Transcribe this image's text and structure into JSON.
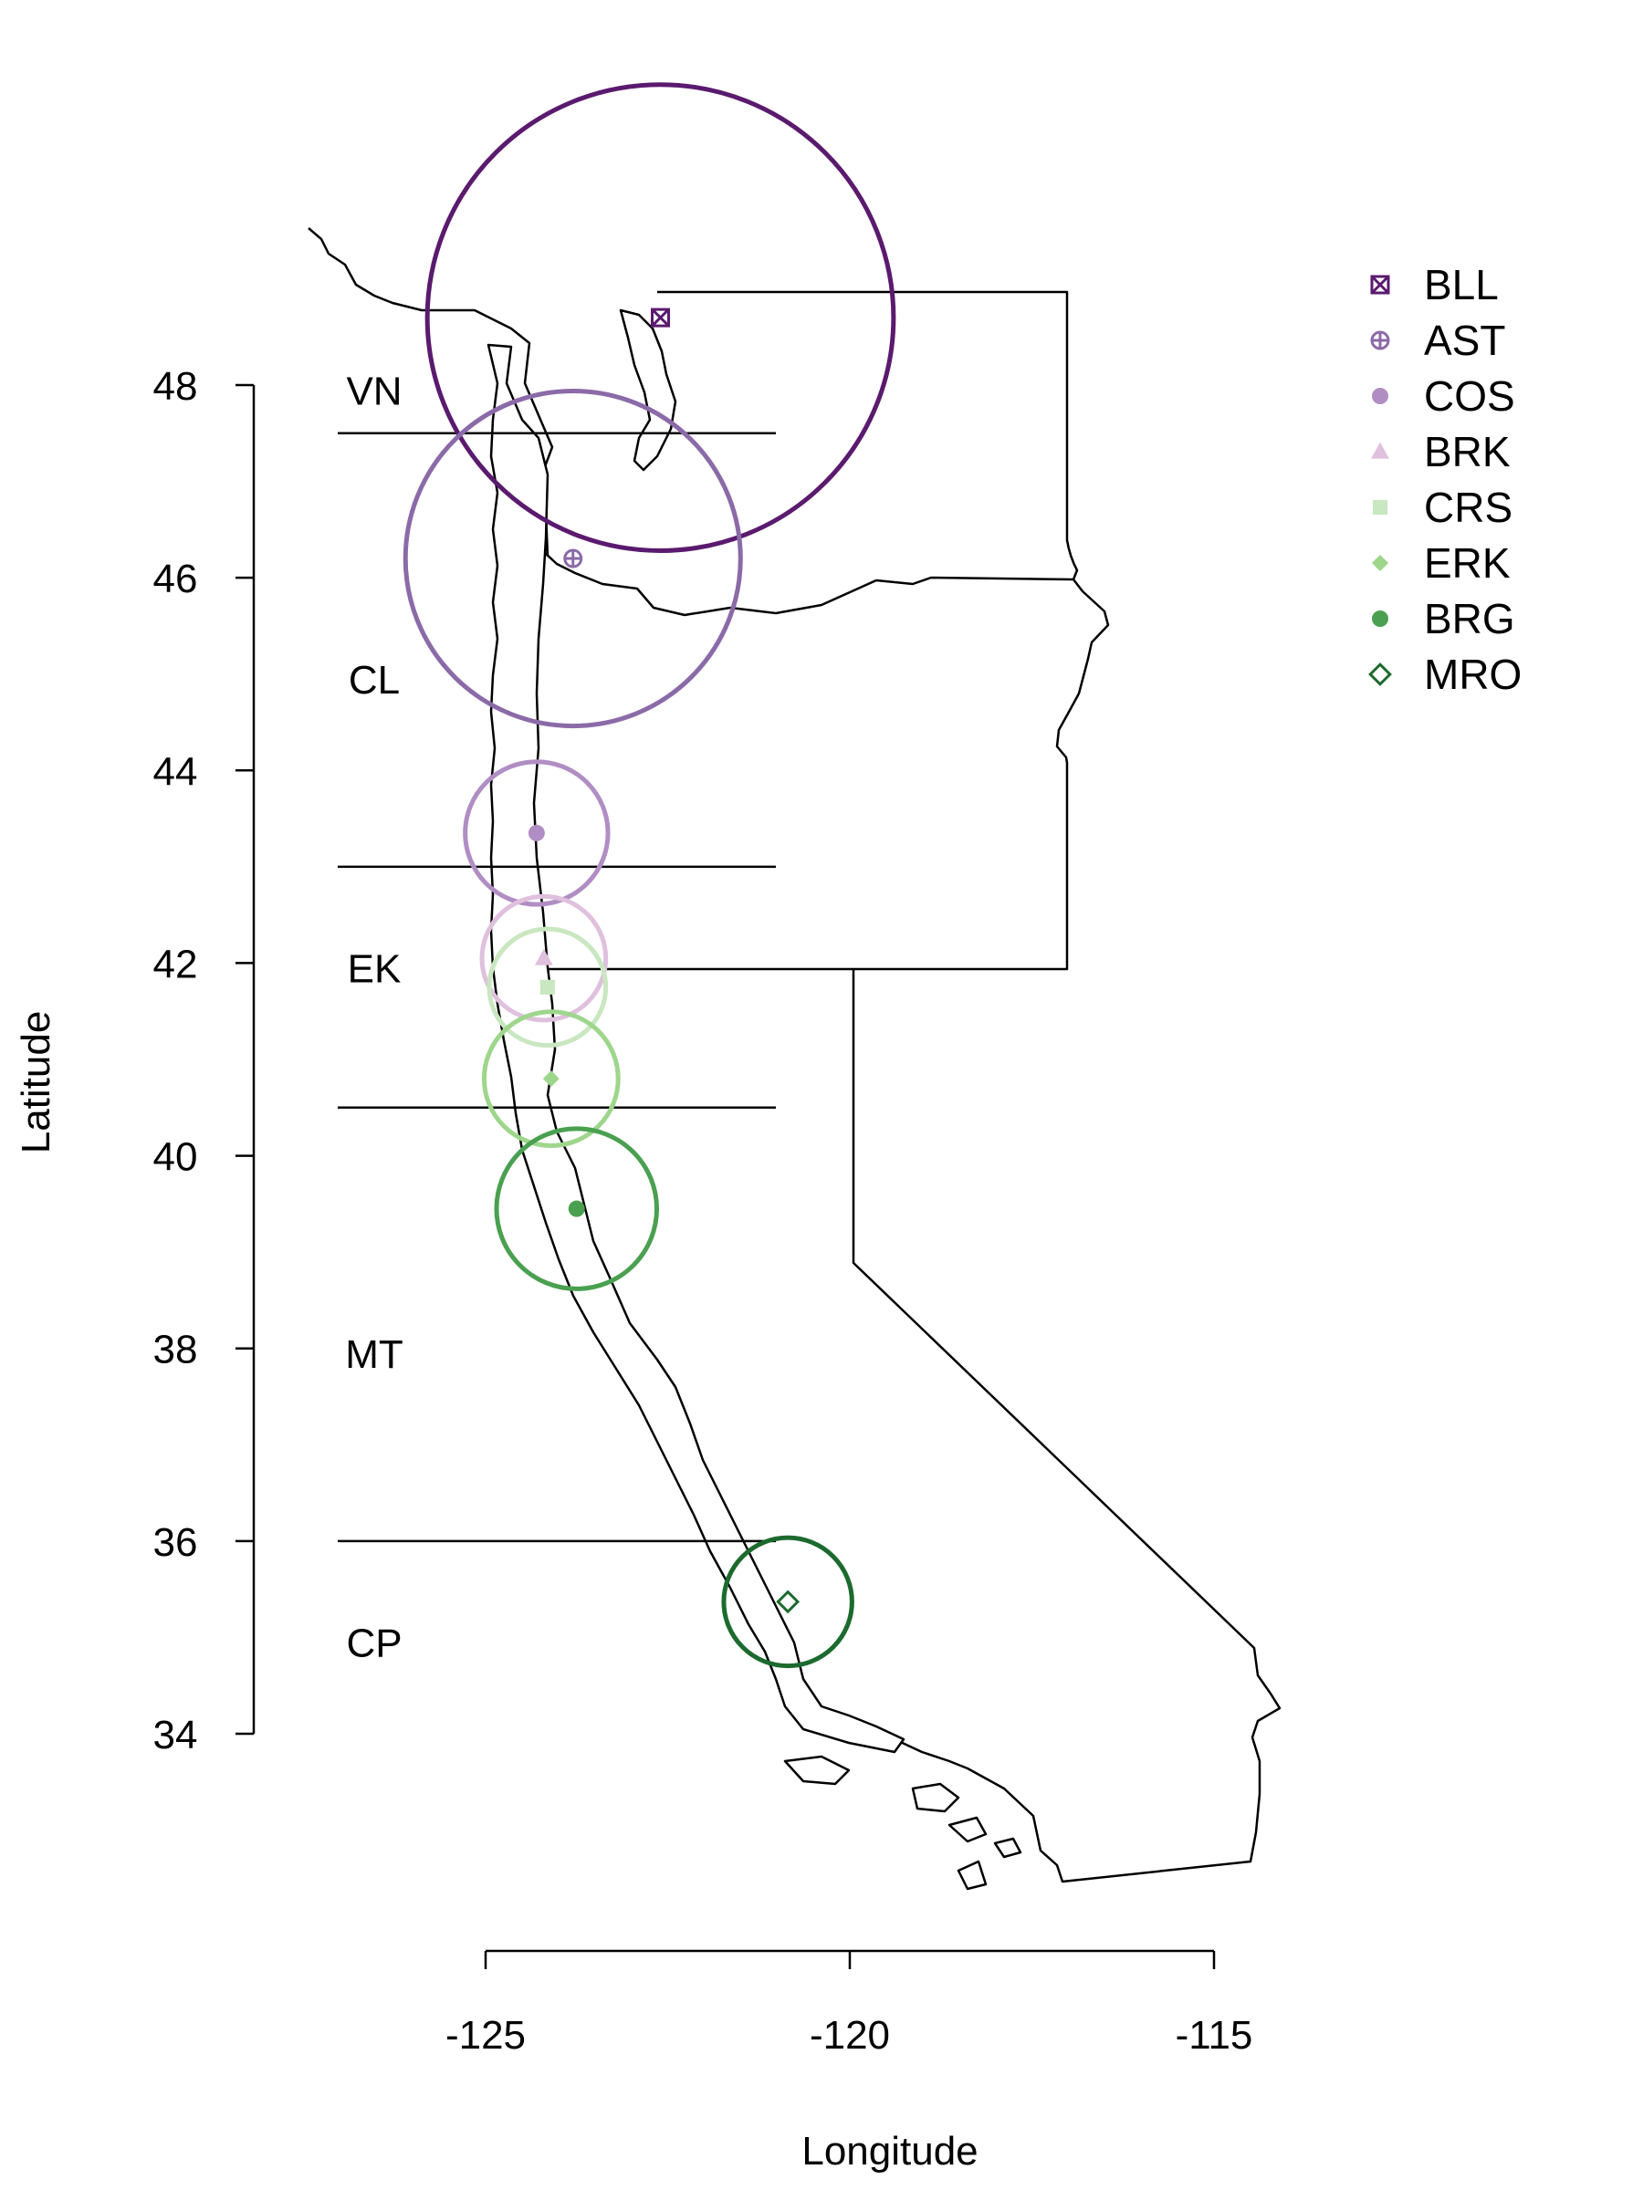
{
  "chart_data": {
    "type": "map",
    "xlabel": "Longitude",
    "ylabel": "Latitude",
    "xlim": [
      -127.5,
      -114
    ],
    "ylim": [
      32,
      49.6
    ],
    "x_ticks": [
      -125,
      -120,
      -115
    ],
    "x_tick_labels": [
      "-125",
      "-120",
      "-115"
    ],
    "y_ticks": [
      34,
      36,
      38,
      40,
      42,
      44,
      46,
      48
    ],
    "y_tick_labels": [
      "34",
      "36",
      "38",
      "40",
      "42",
      "44",
      "46",
      "48"
    ],
    "regions": [
      {
        "label": "VN",
        "lat": 47.95
      },
      {
        "label": "CL",
        "lat": 44.95
      },
      {
        "label": "EK",
        "lat": 41.95
      },
      {
        "label": "MT",
        "lat": 37.95
      },
      {
        "label": "CP",
        "lat": 34.95
      }
    ],
    "region_boundaries_lat": [
      47.5,
      43.0,
      40.5,
      36.0
    ],
    "sites": [
      {
        "code": "BLL",
        "lon": -122.6,
        "lat": 48.7,
        "radius_deg": 3.2,
        "color": "#5a1a6e",
        "symbol": "square-x"
      },
      {
        "code": "AST",
        "lon": -123.8,
        "lat": 46.2,
        "radius_deg": 2.3,
        "color": "#8b6aa8",
        "symbol": "circle-plus"
      },
      {
        "code": "COS",
        "lon": -124.3,
        "lat": 43.35,
        "radius_deg": 0.98,
        "color": "#b08ec4",
        "symbol": "circle-filled"
      },
      {
        "code": "BRK",
        "lon": -124.2,
        "lat": 42.05,
        "radius_deg": 0.85,
        "color": "#dfc0dd",
        "symbol": "triangle"
      },
      {
        "code": "CRS",
        "lon": -124.15,
        "lat": 41.75,
        "radius_deg": 0.8,
        "color": "#c9e7c0",
        "symbol": "square-filled"
      },
      {
        "code": "ERK",
        "lon": -124.1,
        "lat": 40.8,
        "radius_deg": 0.92,
        "color": "#9ed68c",
        "symbol": "diamond-filled"
      },
      {
        "code": "BRG",
        "lon": -123.75,
        "lat": 39.45,
        "radius_deg": 1.1,
        "color": "#4aa050",
        "symbol": "circle-filled"
      },
      {
        "code": "MRO",
        "lon": -120.85,
        "lat": 35.37,
        "radius_deg": 0.88,
        "color": "#1c6a2e",
        "symbol": "diamond-open"
      }
    ]
  }
}
